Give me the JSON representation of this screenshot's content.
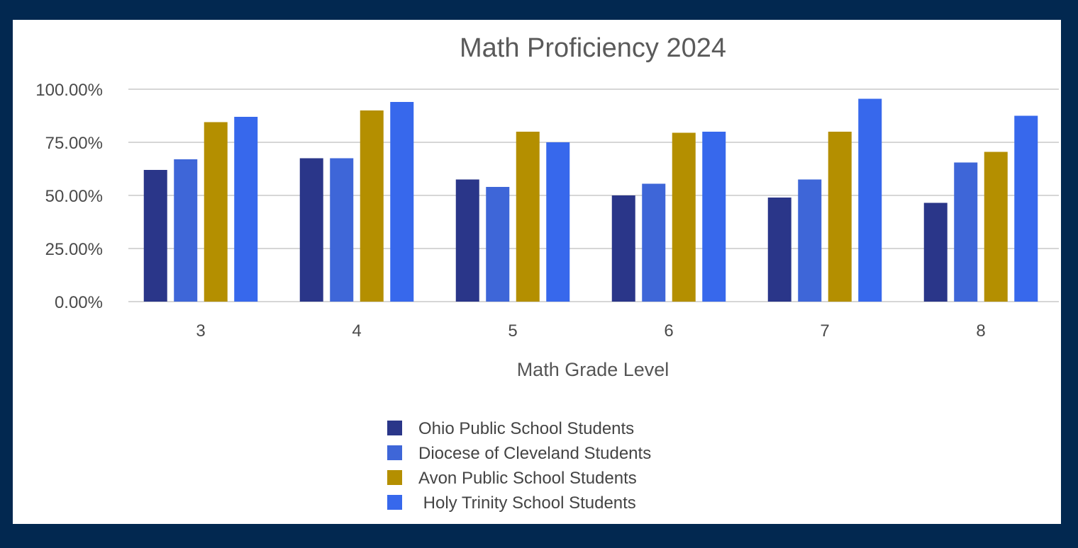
{
  "colors": {
    "background": "#022850",
    "panel": "#ffffff",
    "grid": "#d6d6d6"
  },
  "chart_data": {
    "type": "bar",
    "title": "Math Proficiency 2024",
    "xlabel": "Math Grade Level",
    "ylabel": "",
    "categories": [
      "3",
      "4",
      "5",
      "6",
      "7",
      "8"
    ],
    "ylim": [
      0,
      100
    ],
    "yticks": [
      {
        "value": 0,
        "label": "0.00%"
      },
      {
        "value": 25,
        "label": "25.00%"
      },
      {
        "value": 50,
        "label": "50.00%"
      },
      {
        "value": 75,
        "label": "75.00%"
      },
      {
        "value": 100,
        "label": "100.00%"
      }
    ],
    "grid": true,
    "legend_position": "bottom",
    "series": [
      {
        "name": "Ohio Public School Students",
        "color": "#2a3689",
        "values": [
          62,
          67.5,
          57.5,
          50,
          49,
          46.5
        ]
      },
      {
        "name": "Diocese of Cleveland Students",
        "color": "#3e66d8",
        "values": [
          67,
          67.5,
          54,
          55.5,
          57.5,
          65.5
        ]
      },
      {
        "name": "Avon Public School Students",
        "color": "#b48f00",
        "values": [
          84.5,
          90,
          80,
          79.5,
          80,
          70.5
        ]
      },
      {
        "name": " Holy Trinity School Students",
        "color": "#3768ec",
        "values": [
          87,
          94,
          75,
          80,
          95.5,
          87.5
        ]
      }
    ]
  }
}
